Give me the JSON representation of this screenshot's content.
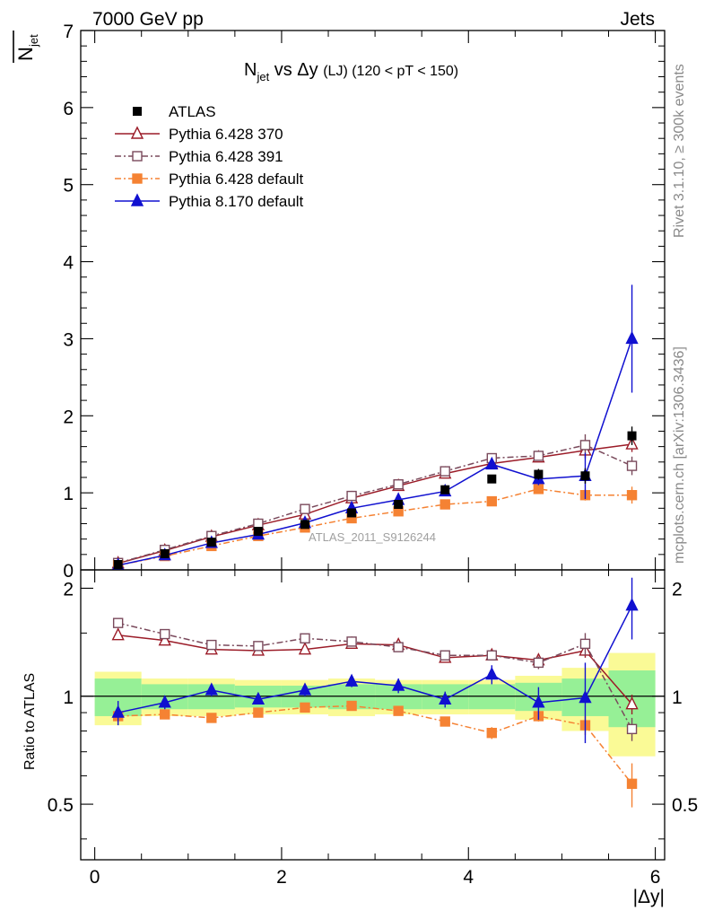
{
  "header": {
    "left": "7000 GeV pp",
    "right": "Jets"
  },
  "side_labels": {
    "rivet": "Rivet 3.1.10, ≥ 300k events",
    "mcplots": "mcplots.cern.ch [arXiv:1306.3436]"
  },
  "chart_data": {
    "type": "line",
    "title": "N_jet vs Δy (LJ) (120 < pT < 150)",
    "title_parts": {
      "a": "N",
      "a_sub": "jet",
      "b": " vs Δy ",
      "c": "(LJ)",
      "d": " (120 < pT < 150)"
    },
    "ylabel": {
      "main": "N",
      "sub": "jet"
    },
    "ratio_ylabel": "Ratio to ATLAS",
    "xlabel": "|Δy|",
    "watermark": "ATLAS_2011_S9126244",
    "xlim": [
      -0.15,
      6.1
    ],
    "ylim": [
      0,
      7
    ],
    "ratio_ylim": [
      0.35,
      2.25
    ],
    "x_ticks": [
      "0",
      "2",
      "4",
      "6"
    ],
    "y_ticks": [
      "0",
      "1",
      "2",
      "3",
      "4",
      "5",
      "6",
      "7"
    ],
    "ratio_ticks": [
      "0.5",
      "1",
      "2"
    ],
    "x": [
      0.25,
      0.75,
      1.25,
      1.75,
      2.25,
      2.75,
      3.25,
      3.75,
      4.25,
      4.75,
      5.25,
      5.75
    ],
    "data": {
      "name": "ATLAS",
      "color": "#000000",
      "values": [
        0.07,
        0.21,
        0.36,
        0.5,
        0.59,
        0.74,
        0.85,
        1.04,
        1.18,
        1.24,
        1.22,
        1.74
      ],
      "errors": [
        0.01,
        0.01,
        0.02,
        0.02,
        0.02,
        0.03,
        0.04,
        0.04,
        0.05,
        0.07,
        0.1,
        0.12
      ]
    },
    "series": [
      {
        "name": "Pythia 6.428 370",
        "color": "#9b1c28",
        "marker": "triangle-open",
        "dash": "",
        "values": [
          0.085,
          0.25,
          0.43,
          0.58,
          0.72,
          0.93,
          1.09,
          1.25,
          1.38,
          1.46,
          1.55,
          1.63
        ],
        "errors": [
          0,
          0,
          0,
          0,
          0,
          0,
          0,
          0,
          0,
          0.04,
          0.1,
          0.1
        ]
      },
      {
        "name": "Pythia 6.428 391",
        "color": "#7a4a5c",
        "marker": "square-open",
        "dash": "7,3,2,3",
        "values": [
          0.09,
          0.26,
          0.44,
          0.6,
          0.79,
          0.96,
          1.11,
          1.28,
          1.45,
          1.48,
          1.62,
          1.35
        ],
        "errors": [
          0,
          0,
          0,
          0,
          0,
          0,
          0,
          0,
          0.03,
          0.05,
          0.14,
          0.12
        ]
      },
      {
        "name": "Pythia 6.428 default",
        "color": "#f58233",
        "marker": "square-filled",
        "dash": "7,3,2,3",
        "values": [
          0.06,
          0.18,
          0.31,
          0.44,
          0.55,
          0.67,
          0.76,
          0.85,
          0.89,
          1.05,
          0.97,
          0.97
        ],
        "errors": [
          0,
          0,
          0,
          0,
          0,
          0,
          0,
          0,
          0,
          0.04,
          0.07,
          0.11
        ]
      },
      {
        "name": "Pythia 8.170 default",
        "color": "#1010d0",
        "marker": "triangle-filled",
        "dash": "",
        "values": [
          0.06,
          0.19,
          0.35,
          0.46,
          0.61,
          0.8,
          0.91,
          1.02,
          1.37,
          1.18,
          1.22,
          3.0
        ],
        "errors": [
          0.01,
          0.01,
          0.02,
          0.02,
          0.03,
          0.03,
          0.04,
          0.04,
          0.06,
          0.08,
          0.3,
          0.7
        ]
      }
    ],
    "ratio": {
      "x": [
        0.25,
        0.75,
        1.25,
        1.75,
        2.25,
        2.75,
        3.25,
        3.75,
        4.25,
        4.75,
        5.25,
        5.75
      ],
      "series": [
        {
          "name": "Pythia 6.428 370",
          "values": [
            1.48,
            1.43,
            1.35,
            1.34,
            1.35,
            1.4,
            1.39,
            1.28,
            1.3,
            1.26,
            1.34,
            0.95
          ],
          "errors": [
            0,
            0,
            0,
            0,
            0,
            0,
            0,
            0,
            0,
            0.04,
            0.06,
            0.06
          ]
        },
        {
          "name": "Pythia 6.428 391",
          "values": [
            1.6,
            1.49,
            1.39,
            1.38,
            1.45,
            1.42,
            1.37,
            1.3,
            1.3,
            1.24,
            1.4,
            0.81
          ],
          "errors": [
            0,
            0,
            0,
            0,
            0,
            0,
            0,
            0,
            0,
            0.05,
            0.1,
            0.06
          ]
        },
        {
          "name": "Pythia 6.428 default",
          "values": [
            0.88,
            0.89,
            0.87,
            0.9,
            0.93,
            0.94,
            0.91,
            0.85,
            0.79,
            0.88,
            0.83,
            0.57
          ],
          "errors": [
            0,
            0,
            0,
            0,
            0,
            0,
            0,
            0,
            0.03,
            0.03,
            0.05,
            0.08
          ]
        },
        {
          "name": "Pythia 8.170 default",
          "values": [
            0.9,
            0.96,
            1.04,
            0.98,
            1.04,
            1.1,
            1.07,
            0.98,
            1.15,
            0.96,
            0.99,
            1.79
          ],
          "errors": [
            0.07,
            0.04,
            0.04,
            0.03,
            0.04,
            0.04,
            0.05,
            0.05,
            0.07,
            0.1,
            0.25,
            0.35
          ]
        }
      ],
      "band_inner": [
        0.12,
        0.08,
        0.08,
        0.07,
        0.07,
        0.08,
        0.08,
        0.08,
        0.08,
        0.09,
        0.12,
        0.18
      ],
      "band_outer": [
        0.17,
        0.12,
        0.12,
        0.11,
        0.11,
        0.12,
        0.11,
        0.11,
        0.11,
        0.14,
        0.2,
        0.32
      ]
    }
  }
}
